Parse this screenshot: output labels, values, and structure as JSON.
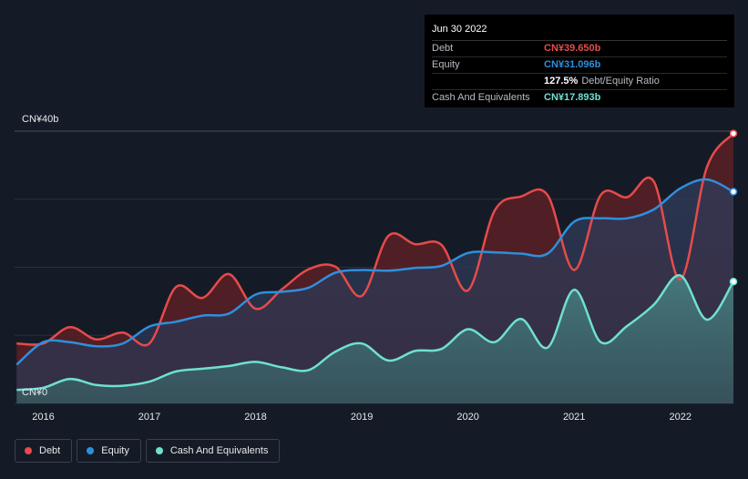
{
  "tooltip": {
    "date": "Jun 30 2022",
    "debt_label": "Debt",
    "debt_value": "CN¥39.650b",
    "equity_label": "Equity",
    "equity_value": "CN¥31.096b",
    "ratio_value": "127.5%",
    "ratio_label": "Debt/Equity Ratio",
    "cash_label": "Cash And Equivalents",
    "cash_value": "CN¥17.893b"
  },
  "legend": [
    {
      "label": "Debt",
      "color": "#e64b4b"
    },
    {
      "label": "Equity",
      "color": "#2f8fdd"
    },
    {
      "label": "Cash And Equivalents",
      "color": "#6fe0d0"
    }
  ],
  "chart_data": {
    "type": "area",
    "ylim": [
      0,
      40
    ],
    "y_tick_labels": [
      "CN¥0",
      "CN¥40b"
    ],
    "x_ticks": [
      2016,
      2017,
      2018,
      2019,
      2020,
      2021,
      2022
    ],
    "x_tick_labels": [
      "2016",
      "2017",
      "2018",
      "2019",
      "2020",
      "2021",
      "2022"
    ],
    "xlim": [
      2015.73,
      2022.5
    ],
    "grid": true,
    "colors": {
      "debt": "#e64b4b",
      "equity": "#2f8fdd",
      "cash": "#6fe0d0"
    },
    "series": [
      {
        "name": "Debt",
        "points": [
          [
            2015.75,
            8.8
          ],
          [
            2016.0,
            8.8
          ],
          [
            2016.25,
            11.2
          ],
          [
            2016.5,
            9.4
          ],
          [
            2016.75,
            10.4
          ],
          [
            2017.0,
            8.8
          ],
          [
            2017.25,
            17.1
          ],
          [
            2017.5,
            15.5
          ],
          [
            2017.75,
            19.0
          ],
          [
            2018.0,
            13.9
          ],
          [
            2018.25,
            16.8
          ],
          [
            2018.5,
            19.7
          ],
          [
            2018.75,
            20.1
          ],
          [
            2019.0,
            15.8
          ],
          [
            2019.25,
            24.6
          ],
          [
            2019.5,
            23.4
          ],
          [
            2019.75,
            23.3
          ],
          [
            2020.0,
            16.6
          ],
          [
            2020.25,
            28.3
          ],
          [
            2020.5,
            30.4
          ],
          [
            2020.75,
            30.6
          ],
          [
            2021.0,
            19.6
          ],
          [
            2021.25,
            30.6
          ],
          [
            2021.5,
            30.3
          ],
          [
            2021.75,
            32.6
          ],
          [
            2022.0,
            18.2
          ],
          [
            2022.25,
            34.7
          ],
          [
            2022.5,
            39.65
          ]
        ]
      },
      {
        "name": "Equity",
        "points": [
          [
            2015.75,
            5.7
          ],
          [
            2016.0,
            9.0
          ],
          [
            2016.25,
            9.0
          ],
          [
            2016.5,
            8.4
          ],
          [
            2016.75,
            8.8
          ],
          [
            2017.0,
            11.3
          ],
          [
            2017.25,
            12.0
          ],
          [
            2017.5,
            12.9
          ],
          [
            2017.75,
            13.2
          ],
          [
            2018.0,
            16.0
          ],
          [
            2018.25,
            16.4
          ],
          [
            2018.5,
            17.0
          ],
          [
            2018.75,
            19.2
          ],
          [
            2019.0,
            19.6
          ],
          [
            2019.25,
            19.5
          ],
          [
            2019.5,
            19.9
          ],
          [
            2019.75,
            20.2
          ],
          [
            2020.0,
            22.1
          ],
          [
            2020.25,
            22.2
          ],
          [
            2020.5,
            22.0
          ],
          [
            2020.75,
            22.0
          ],
          [
            2021.0,
            26.7
          ],
          [
            2021.25,
            27.2
          ],
          [
            2021.5,
            27.2
          ],
          [
            2021.75,
            28.5
          ],
          [
            2022.0,
            31.6
          ],
          [
            2022.25,
            32.9
          ],
          [
            2022.5,
            31.096
          ]
        ]
      },
      {
        "name": "Cash And Equivalents",
        "points": [
          [
            2015.75,
            2.0
          ],
          [
            2016.0,
            2.3
          ],
          [
            2016.25,
            3.6
          ],
          [
            2016.5,
            2.7
          ],
          [
            2016.75,
            2.6
          ],
          [
            2017.0,
            3.2
          ],
          [
            2017.25,
            4.7
          ],
          [
            2017.5,
            5.1
          ],
          [
            2017.75,
            5.5
          ],
          [
            2018.0,
            6.1
          ],
          [
            2018.25,
            5.3
          ],
          [
            2018.5,
            4.9
          ],
          [
            2018.75,
            7.6
          ],
          [
            2019.0,
            8.8
          ],
          [
            2019.25,
            6.3
          ],
          [
            2019.5,
            7.7
          ],
          [
            2019.75,
            8.0
          ],
          [
            2020.0,
            10.9
          ],
          [
            2020.25,
            9.0
          ],
          [
            2020.5,
            12.4
          ],
          [
            2020.75,
            8.2
          ],
          [
            2021.0,
            16.7
          ],
          [
            2021.25,
            9.0
          ],
          [
            2021.5,
            11.4
          ],
          [
            2021.75,
            14.5
          ],
          [
            2022.0,
            18.8
          ],
          [
            2022.25,
            12.3
          ],
          [
            2022.5,
            17.893
          ]
        ]
      }
    ]
  }
}
